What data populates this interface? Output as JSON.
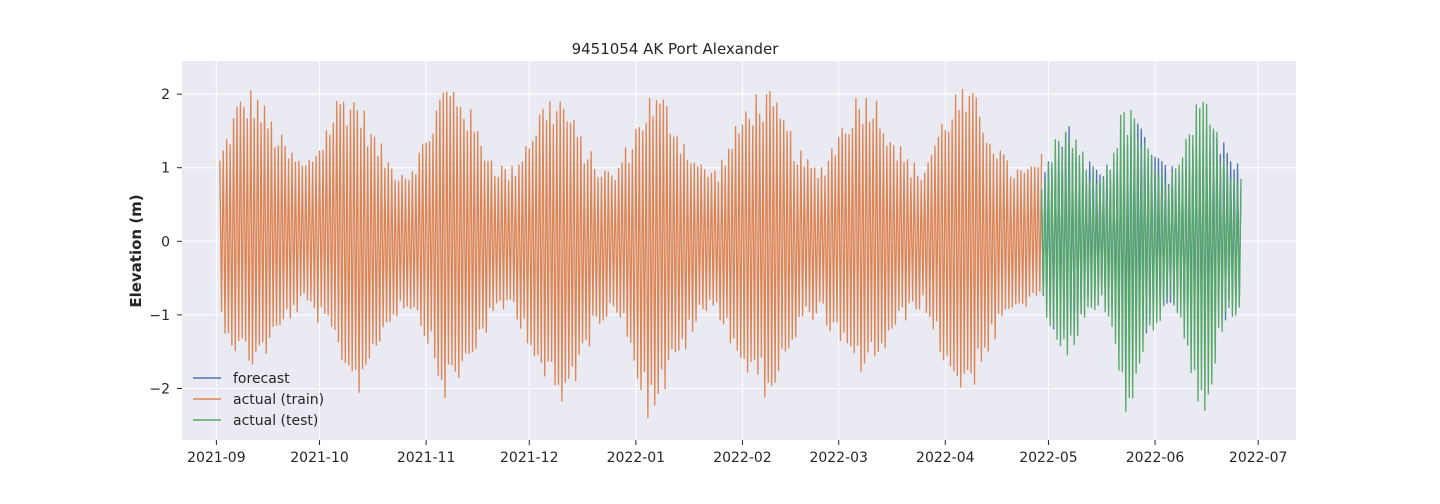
{
  "chart_data": {
    "type": "line",
    "title": "9451054 AK Port Alexander",
    "xlabel": "",
    "ylabel": "Elevation (m)",
    "x_range": [
      "2021-08-22",
      "2022-07-12"
    ],
    "ylim": [
      -2.7,
      2.45
    ],
    "grid": true,
    "legend_position": "lower-left",
    "x_ticks": [
      "2021-09",
      "2021-10",
      "2021-11",
      "2021-12",
      "2022-01",
      "2022-02",
      "2022-03",
      "2022-04",
      "2022-05",
      "2022-06",
      "2022-07"
    ],
    "x_tick_dates": [
      "2021-09-01",
      "2021-10-01",
      "2021-11-01",
      "2021-12-01",
      "2022-01-01",
      "2022-02-01",
      "2022-03-01",
      "2022-04-01",
      "2022-05-01",
      "2022-06-01",
      "2022-07-01"
    ],
    "y_ticks": [
      -2,
      -1,
      0,
      1,
      2
    ],
    "y_tick_labels": [
      "−2",
      "−1",
      "0",
      "1",
      "2"
    ],
    "series": [
      {
        "name": "forecast",
        "color": "#4c72b0",
        "x_start": "2022-04-29",
        "x_end": "2022-06-26",
        "envelope_high": [
          0.8,
          1.4,
          1.72,
          1.5,
          1.1,
          0.95,
          1.2,
          1.55,
          1.7,
          1.5,
          1.15,
          1.0,
          1.1,
          1.45,
          1.65,
          1.5,
          1.2,
          1.0
        ],
        "envelope_low": [
          -0.7,
          -1.2,
          -1.45,
          -1.3,
          -0.9,
          -0.8,
          -1.0,
          -1.35,
          -1.5,
          -1.3,
          -1.0,
          -0.85,
          -1.0,
          -1.3,
          -1.45,
          -1.3,
          -1.0,
          -0.85
        ]
      },
      {
        "name": "actual (train)",
        "color": "#dd8452",
        "x_start": "2021-09-02",
        "x_end": "2022-04-29",
        "envelope_high": [
          1.2,
          1.95,
          2.15,
          1.7,
          1.3,
          1.1,
          1.5,
          2.1,
          2.05,
          1.5,
          1.1,
          1.0,
          1.45,
          2.2,
          2.2,
          1.6,
          1.15,
          1.0,
          1.5,
          2.0,
          2.05,
          1.5,
          1.1,
          0.95,
          1.45,
          2.05,
          2.0,
          1.5,
          1.1,
          1.0,
          1.5,
          2.05,
          2.1,
          1.7,
          1.2,
          1.0,
          1.5,
          2.0,
          2.15,
          1.7,
          1.2,
          1.0,
          1.6,
          2.1,
          2.05,
          1.6,
          1.1,
          1.0,
          1.2
        ],
        "envelope_low": [
          -1.1,
          -1.6,
          -1.75,
          -1.5,
          -1.1,
          -0.9,
          -1.2,
          -1.6,
          -2.15,
          -1.6,
          -1.1,
          -0.9,
          -1.3,
          -2.2,
          -2.0,
          -1.5,
          -1.1,
          -0.9,
          -1.4,
          -2.0,
          -2.4,
          -1.8,
          -1.2,
          -0.9,
          -1.5,
          -2.45,
          -2.1,
          -1.6,
          -1.1,
          -0.95,
          -1.5,
          -2.0,
          -2.15,
          -1.8,
          -1.2,
          -1.0,
          -1.4,
          -1.85,
          -1.75,
          -1.5,
          -1.1,
          -0.9,
          -1.5,
          -2.1,
          -2.0,
          -1.5,
          -1.1,
          -0.9,
          -0.9
        ]
      },
      {
        "name": "actual (test)",
        "color": "#55a868",
        "x_start": "2022-04-29",
        "x_end": "2022-06-26",
        "envelope_high": [
          0.7,
          1.35,
          1.6,
          1.4,
          1.05,
          0.9,
          1.3,
          1.9,
          1.75,
          1.3,
          1.0,
          0.95,
          1.2,
          1.85,
          1.95,
          1.5,
          1.1,
          1.0
        ],
        "envelope_low": [
          -0.85,
          -1.4,
          -1.6,
          -1.4,
          -1.0,
          -0.9,
          -1.3,
          -2.45,
          -2.2,
          -1.5,
          -1.1,
          -0.95,
          -1.3,
          -2.3,
          -2.4,
          -1.6,
          -1.1,
          -1.0
        ]
      }
    ]
  }
}
